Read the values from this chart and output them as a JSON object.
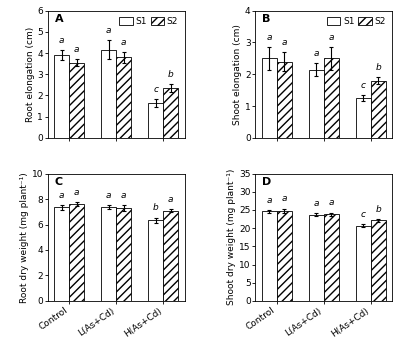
{
  "panels": [
    {
      "label": "A",
      "ylabel": "Root elongation (cm)",
      "ylim": [
        0,
        6
      ],
      "yticks": [
        0,
        1,
        2,
        3,
        4,
        5,
        6
      ],
      "s1_values": [
        3.9,
        4.15,
        1.65
      ],
      "s2_values": [
        3.55,
        3.8,
        2.35
      ],
      "s1_errors": [
        0.25,
        0.45,
        0.2
      ],
      "s2_errors": [
        0.15,
        0.25,
        0.2
      ],
      "s1_letters": [
        "a",
        "a",
        "c"
      ],
      "s2_letters": [
        "a",
        "a",
        "b"
      ]
    },
    {
      "label": "B",
      "ylabel": "Shoot elongation (cm)",
      "ylim": [
        0,
        4
      ],
      "yticks": [
        0,
        1,
        2,
        3,
        4
      ],
      "s1_values": [
        2.5,
        2.15,
        1.25
      ],
      "s2_values": [
        2.4,
        2.5,
        1.8
      ],
      "s1_errors": [
        0.35,
        0.2,
        0.1
      ],
      "s2_errors": [
        0.3,
        0.35,
        0.12
      ],
      "s1_letters": [
        "a",
        "a",
        "c"
      ],
      "s2_letters": [
        "a",
        "a",
        "b"
      ]
    },
    {
      "label": "C",
      "ylabel": "Root dry weight (mg plant⁻¹)",
      "ylim": [
        0,
        10
      ],
      "yticks": [
        0,
        2,
        4,
        6,
        8,
        10
      ],
      "s1_values": [
        7.35,
        7.35,
        6.35
      ],
      "s2_values": [
        7.6,
        7.3,
        7.1
      ],
      "s1_errors": [
        0.2,
        0.15,
        0.2
      ],
      "s2_errors": [
        0.15,
        0.2,
        0.15
      ],
      "s1_letters": [
        "a",
        "a",
        "b"
      ],
      "s2_letters": [
        "a",
        "a",
        "a"
      ]
    },
    {
      "label": "D",
      "ylabel": "Shoot dry weight (mg plant⁻¹)",
      "ylim": [
        0,
        35
      ],
      "yticks": [
        0,
        5,
        10,
        15,
        20,
        25,
        30,
        35
      ],
      "s1_values": [
        24.6,
        23.7,
        20.7
      ],
      "s2_values": [
        24.8,
        23.8,
        22.2
      ],
      "s1_errors": [
        0.5,
        0.4,
        0.5
      ],
      "s2_errors": [
        0.6,
        0.5,
        0.4
      ],
      "s1_letters": [
        "a",
        "a",
        "c"
      ],
      "s2_letters": [
        "a",
        "a",
        "b"
      ]
    }
  ],
  "categories": [
    "Control",
    "L(As+Cd)",
    "H(As+Cd)"
  ],
  "bar_width": 0.32,
  "s1_color": "white",
  "s2_color": "white",
  "s2_hatch": "////",
  "edge_color": "black",
  "letter_fontsize": 6.5,
  "axis_label_fontsize": 6.5,
  "tick_fontsize": 6.5,
  "legend_fontsize": 6.5,
  "panel_label_fontsize": 8
}
